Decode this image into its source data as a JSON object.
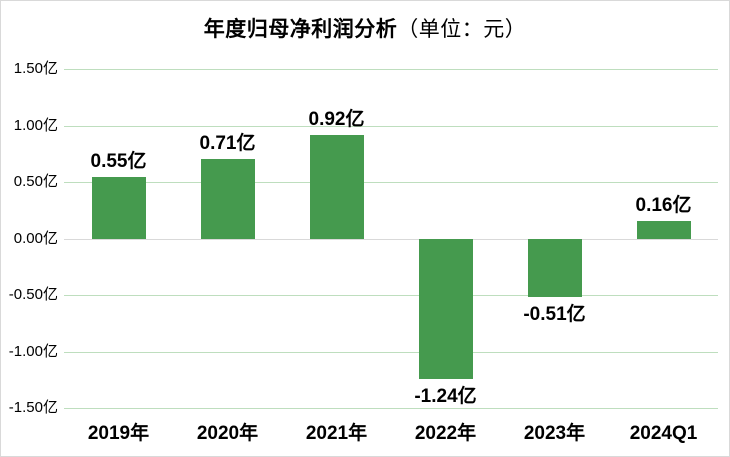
{
  "title": {
    "main": "年度归母净利润分析",
    "unit": "（单位：元）"
  },
  "chart_data": {
    "type": "bar",
    "title": "年度归母净利润分析（单位：元）",
    "categories": [
      "2019年",
      "2020年",
      "2021年",
      "2022年",
      "2023年",
      "2024Q1"
    ],
    "values": [
      0.55,
      0.71,
      0.92,
      -1.24,
      -0.51,
      0.16
    ],
    "value_labels": [
      "0.55亿",
      "0.71亿",
      "0.92亿",
      "-1.24亿",
      "-0.51亿",
      "0.16亿"
    ],
    "xlabel": "",
    "ylabel": "",
    "unit": "亿",
    "ylim": [
      -1.5,
      1.5
    ],
    "ytick_labels": [
      "1.50亿",
      "1.00亿",
      "0.50亿",
      "0.00亿",
      "-0.50亿",
      "-1.00亿",
      "-1.50亿"
    ],
    "grid": true,
    "legend": false,
    "colors": {
      "bar": "#459a4e",
      "gridline": "#bedebe",
      "zero_line": "#d9d9d9",
      "text": "#000000",
      "frame_border": "#d9d9d9"
    }
  }
}
